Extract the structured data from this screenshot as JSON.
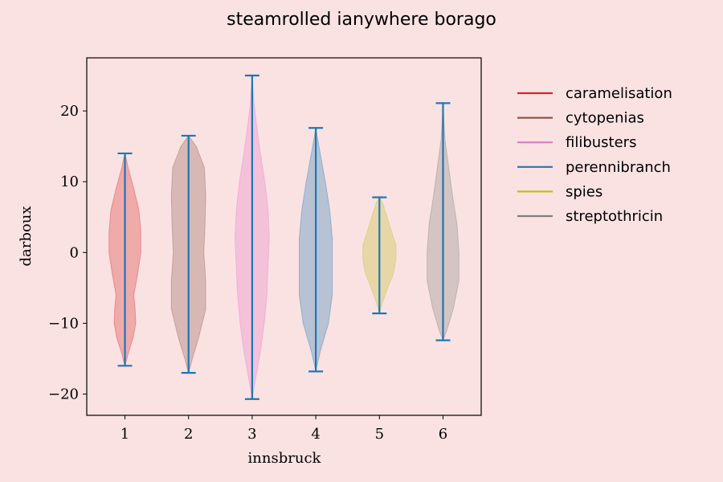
{
  "chart_data": {
    "type": "violin",
    "title": "steamrolled ianywhere borago",
    "xlabel": "innsbruck",
    "ylabel": "darboux",
    "xlim": [
      0.4,
      6.6
    ],
    "ylim": [
      -23,
      27.5
    ],
    "x_ticks": [
      1,
      2,
      3,
      4,
      5,
      6
    ],
    "y_ticks": [
      -20,
      -10,
      0,
      10,
      20
    ],
    "y_tick_labels": [
      "−20",
      "−10",
      "0",
      "10",
      "20"
    ],
    "grid": false,
    "legend_position": "outside-right",
    "legend": [
      {
        "label": "caramelisation",
        "color": "#d62728"
      },
      {
        "label": "cytopenias",
        "color": "#8c564b"
      },
      {
        "label": "filibusters",
        "color": "#e377c2"
      },
      {
        "label": "perennibranch",
        "color": "#1f77b4"
      },
      {
        "label": "spies",
        "color": "#bcbd22"
      },
      {
        "label": "streptothricin",
        "color": "#7f7f7f"
      }
    ],
    "violins": [
      {
        "x": 1,
        "min": -16,
        "max": 14,
        "color": "#d62728",
        "profile": [
          [
            -16,
            0.0
          ],
          [
            -14,
            0.06
          ],
          [
            -12,
            0.13
          ],
          [
            -10,
            0.17
          ],
          [
            -8,
            0.16
          ],
          [
            -6,
            0.14
          ],
          [
            -3,
            0.2
          ],
          [
            0,
            0.25
          ],
          [
            3,
            0.25
          ],
          [
            6,
            0.22
          ],
          [
            9,
            0.14
          ],
          [
            12,
            0.05
          ],
          [
            14,
            0.0
          ]
        ]
      },
      {
        "x": 2,
        "min": -17,
        "max": 16.5,
        "color": "#8c564b",
        "profile": [
          [
            -17,
            0.0
          ],
          [
            -15,
            0.06
          ],
          [
            -12,
            0.16
          ],
          [
            -8,
            0.27
          ],
          [
            -4,
            0.27
          ],
          [
            0,
            0.24
          ],
          [
            4,
            0.26
          ],
          [
            8,
            0.27
          ],
          [
            12,
            0.25
          ],
          [
            15,
            0.12
          ],
          [
            16.5,
            0.0
          ]
        ]
      },
      {
        "x": 3,
        "min": -20.7,
        "max": 25,
        "color": "#e377c2",
        "profile": [
          [
            -20.7,
            0.0
          ],
          [
            -18,
            0.05
          ],
          [
            -14,
            0.13
          ],
          [
            -10,
            0.19
          ],
          [
            -6,
            0.23
          ],
          [
            -2,
            0.25
          ],
          [
            2,
            0.27
          ],
          [
            6,
            0.25
          ],
          [
            10,
            0.2
          ],
          [
            14,
            0.13
          ],
          [
            18,
            0.07
          ],
          [
            21,
            0.03
          ],
          [
            25,
            0.0
          ]
        ]
      },
      {
        "x": 4,
        "min": -16.8,
        "max": 17.6,
        "color": "#1f77b4",
        "profile": [
          [
            -16.8,
            0.0
          ],
          [
            -14,
            0.07
          ],
          [
            -10,
            0.2
          ],
          [
            -6,
            0.26
          ],
          [
            -2,
            0.26
          ],
          [
            2,
            0.26
          ],
          [
            6,
            0.22
          ],
          [
            10,
            0.15
          ],
          [
            14,
            0.07
          ],
          [
            17.6,
            0.0
          ]
        ]
      },
      {
        "x": 5,
        "min": -8.6,
        "max": 7.8,
        "color": "#bcbd22",
        "profile": [
          [
            -8.6,
            0.0
          ],
          [
            -7,
            0.05
          ],
          [
            -5,
            0.13
          ],
          [
            -3,
            0.22
          ],
          [
            -1,
            0.26
          ],
          [
            1,
            0.26
          ],
          [
            3,
            0.19
          ],
          [
            5,
            0.12
          ],
          [
            7,
            0.05
          ],
          [
            7.8,
            0.0
          ]
        ]
      },
      {
        "x": 6,
        "min": -12.4,
        "max": 21.1,
        "color": "#7f7f7f",
        "profile": [
          [
            -12.4,
            0.0
          ],
          [
            -11,
            0.06
          ],
          [
            -8,
            0.16
          ],
          [
            -4,
            0.25
          ],
          [
            0,
            0.25
          ],
          [
            4,
            0.22
          ],
          [
            8,
            0.15
          ],
          [
            12,
            0.09
          ],
          [
            16,
            0.03
          ],
          [
            21.1,
            0.0
          ]
        ]
      }
    ]
  }
}
